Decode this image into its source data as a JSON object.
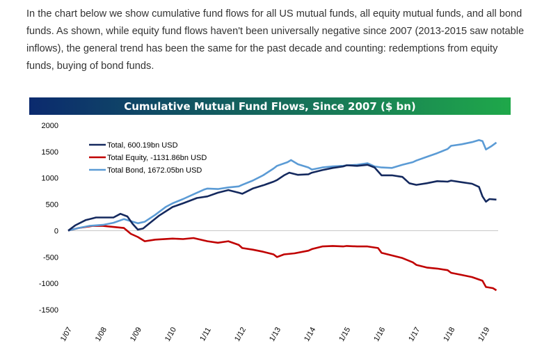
{
  "article": {
    "paragraph": "In the chart below we show cumulative fund flows for all US mutual funds, all equity mutual funds, and all bond funds. As shown, while equity fund flows haven't been universally negative since 2007 (2013-2015 saw notable inflows), the general trend has been the same for the past decade and counting: redemptions from equity funds, buying of bond funds."
  },
  "chart_data": {
    "type": "line",
    "title": "Cumulative Mutual Fund Flows, Since 2007 ($ bn)",
    "title_gradient": [
      "#0b2a6e",
      "#1fa84a"
    ],
    "ylim": [
      -1500,
      2000
    ],
    "yticks": [
      2000,
      1500,
      1000,
      500,
      0,
      -500,
      -1000,
      -1500
    ],
    "xlim": [
      2007.0,
      2019.35
    ],
    "xticks": [
      {
        "x": 2007,
        "label": "1/07"
      },
      {
        "x": 2008,
        "label": "1/08"
      },
      {
        "x": 2009,
        "label": "1/09"
      },
      {
        "x": 2010,
        "label": "1/10"
      },
      {
        "x": 2011,
        "label": "1/11"
      },
      {
        "x": 2012,
        "label": "1/12"
      },
      {
        "x": 2013,
        "label": "1/13"
      },
      {
        "x": 2014,
        "label": "1/14"
      },
      {
        "x": 2015,
        "label": "1/15"
      },
      {
        "x": 2016,
        "label": "1/16"
      },
      {
        "x": 2017,
        "label": "1/17"
      },
      {
        "x": 2018,
        "label": "1/18"
      },
      {
        "x": 2019,
        "label": "1/19"
      }
    ],
    "legend_position": "top-left",
    "series": [
      {
        "name": "Total, 600.19bn USD",
        "color": "#14295e",
        "points": [
          [
            2007.0,
            0
          ],
          [
            2007.2,
            100
          ],
          [
            2007.5,
            200
          ],
          [
            2007.8,
            250
          ],
          [
            2008.0,
            250
          ],
          [
            2008.3,
            250
          ],
          [
            2008.5,
            320
          ],
          [
            2008.7,
            270
          ],
          [
            2008.85,
            130
          ],
          [
            2009.0,
            20
          ],
          [
            2009.15,
            40
          ],
          [
            2009.3,
            120
          ],
          [
            2009.6,
            280
          ],
          [
            2010.0,
            450
          ],
          [
            2010.3,
            520
          ],
          [
            2010.7,
            620
          ],
          [
            2011.0,
            650
          ],
          [
            2011.3,
            720
          ],
          [
            2011.6,
            770
          ],
          [
            2011.9,
            720
          ],
          [
            2012.0,
            700
          ],
          [
            2012.3,
            800
          ],
          [
            2012.6,
            860
          ],
          [
            2012.9,
            930
          ],
          [
            2013.0,
            960
          ],
          [
            2013.2,
            1050
          ],
          [
            2013.35,
            1100
          ],
          [
            2013.6,
            1060
          ],
          [
            2013.9,
            1070
          ],
          [
            2014.0,
            1100
          ],
          [
            2014.3,
            1150
          ],
          [
            2014.6,
            1190
          ],
          [
            2014.9,
            1220
          ],
          [
            2015.0,
            1240
          ],
          [
            2015.3,
            1230
          ],
          [
            2015.6,
            1250
          ],
          [
            2015.8,
            1200
          ],
          [
            2016.0,
            1050
          ],
          [
            2016.3,
            1050
          ],
          [
            2016.6,
            1020
          ],
          [
            2016.8,
            900
          ],
          [
            2017.0,
            870
          ],
          [
            2017.3,
            900
          ],
          [
            2017.6,
            940
          ],
          [
            2017.9,
            930
          ],
          [
            2018.0,
            950
          ],
          [
            2018.3,
            920
          ],
          [
            2018.6,
            890
          ],
          [
            2018.8,
            830
          ],
          [
            2018.9,
            650
          ],
          [
            2019.0,
            550
          ],
          [
            2019.1,
            600
          ],
          [
            2019.3,
            590
          ]
        ]
      },
      {
        "name": "Total Equity, -1131.86bn USD",
        "color": "#c00000",
        "points": [
          [
            2007.0,
            0
          ],
          [
            2007.3,
            50
          ],
          [
            2007.7,
            90
          ],
          [
            2008.0,
            90
          ],
          [
            2008.3,
            70
          ],
          [
            2008.6,
            50
          ],
          [
            2008.8,
            -60
          ],
          [
            2009.0,
            -120
          ],
          [
            2009.2,
            -200
          ],
          [
            2009.5,
            -170
          ],
          [
            2010.0,
            -150
          ],
          [
            2010.3,
            -160
          ],
          [
            2010.6,
            -140
          ],
          [
            2011.0,
            -200
          ],
          [
            2011.3,
            -230
          ],
          [
            2011.6,
            -200
          ],
          [
            2011.9,
            -270
          ],
          [
            2012.0,
            -330
          ],
          [
            2012.3,
            -360
          ],
          [
            2012.6,
            -400
          ],
          [
            2012.9,
            -450
          ],
          [
            2013.0,
            -500
          ],
          [
            2013.2,
            -450
          ],
          [
            2013.5,
            -430
          ],
          [
            2013.9,
            -380
          ],
          [
            2014.0,
            -350
          ],
          [
            2014.3,
            -300
          ],
          [
            2014.6,
            -290
          ],
          [
            2014.9,
            -300
          ],
          [
            2015.0,
            -290
          ],
          [
            2015.3,
            -300
          ],
          [
            2015.6,
            -300
          ],
          [
            2015.9,
            -330
          ],
          [
            2016.0,
            -420
          ],
          [
            2016.3,
            -470
          ],
          [
            2016.6,
            -520
          ],
          [
            2016.9,
            -600
          ],
          [
            2017.0,
            -650
          ],
          [
            2017.3,
            -700
          ],
          [
            2017.6,
            -720
          ],
          [
            2017.9,
            -750
          ],
          [
            2018.0,
            -800
          ],
          [
            2018.3,
            -840
          ],
          [
            2018.6,
            -880
          ],
          [
            2018.9,
            -950
          ],
          [
            2019.0,
            -1070
          ],
          [
            2019.2,
            -1090
          ],
          [
            2019.3,
            -1132
          ]
        ]
      },
      {
        "name": "Total Bond, 1672.05bn USD",
        "color": "#5b9bd5",
        "points": [
          [
            2007.0,
            0
          ],
          [
            2007.3,
            50
          ],
          [
            2007.6,
            90
          ],
          [
            2008.0,
            110
          ],
          [
            2008.3,
            150
          ],
          [
            2008.6,
            220
          ],
          [
            2008.8,
            180
          ],
          [
            2009.0,
            140
          ],
          [
            2009.2,
            170
          ],
          [
            2009.5,
            300
          ],
          [
            2009.8,
            450
          ],
          [
            2010.0,
            520
          ],
          [
            2010.3,
            600
          ],
          [
            2010.6,
            690
          ],
          [
            2010.9,
            780
          ],
          [
            2011.0,
            800
          ],
          [
            2011.3,
            790
          ],
          [
            2011.6,
            820
          ],
          [
            2011.9,
            840
          ],
          [
            2012.0,
            870
          ],
          [
            2012.3,
            950
          ],
          [
            2012.6,
            1050
          ],
          [
            2012.9,
            1180
          ],
          [
            2013.0,
            1230
          ],
          [
            2013.3,
            1300
          ],
          [
            2013.4,
            1340
          ],
          [
            2013.6,
            1260
          ],
          [
            2013.9,
            1200
          ],
          [
            2014.0,
            1160
          ],
          [
            2014.3,
            1200
          ],
          [
            2014.6,
            1220
          ],
          [
            2014.9,
            1230
          ],
          [
            2015.0,
            1240
          ],
          [
            2015.3,
            1250
          ],
          [
            2015.6,
            1280
          ],
          [
            2015.8,
            1220
          ],
          [
            2016.0,
            1200
          ],
          [
            2016.3,
            1190
          ],
          [
            2016.6,
            1250
          ],
          [
            2016.9,
            1300
          ],
          [
            2017.0,
            1330
          ],
          [
            2017.3,
            1400
          ],
          [
            2017.6,
            1470
          ],
          [
            2017.9,
            1550
          ],
          [
            2018.0,
            1610
          ],
          [
            2018.3,
            1640
          ],
          [
            2018.6,
            1680
          ],
          [
            2018.8,
            1720
          ],
          [
            2018.9,
            1700
          ],
          [
            2019.0,
            1540
          ],
          [
            2019.15,
            1600
          ],
          [
            2019.3,
            1672
          ]
        ]
      }
    ]
  }
}
